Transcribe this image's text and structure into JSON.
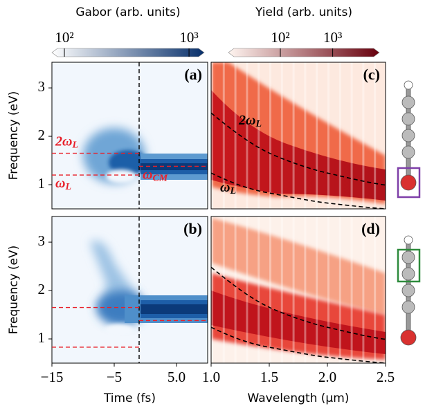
{
  "chart_data": [
    {
      "type": "heatmap",
      "panel": "(a)",
      "ylabel": "Frequency (eV)",
      "xlim": [
        -15,
        10
      ],
      "ylim": [
        0.5,
        3.53
      ],
      "yticks": [
        1,
        2,
        3
      ],
      "vline": -1,
      "colorbar": {
        "label": "Gabor (arb. units)",
        "lim": [
          88,
          1195
        ],
        "log": true,
        "colors": [
          "#ffffff",
          "#08306b"
        ],
        "ticks": [
          {
            "value": 100,
            "label": "10²"
          },
          {
            "value": 1000,
            "label": "10³"
          }
        ]
      },
      "hlines": [
        {
          "y": 1.65,
          "side": "left",
          "label": "2ω",
          "sub": "L"
        },
        {
          "y": 1.2,
          "side": "left",
          "label": "ω",
          "sub": "L"
        },
        {
          "y": 1.38,
          "side": "right",
          "label": "ω",
          "sub": "CM"
        }
      ],
      "line_color": "#e8202a"
    },
    {
      "type": "heatmap",
      "panel": "(c)",
      "xlim": [
        1.0,
        2.5
      ],
      "ylim": [
        0.5,
        3.53
      ],
      "colorbar": {
        "label": "Yield (arb. units)",
        "lim": [
          13,
          6100
        ],
        "log": true,
        "colors": [
          "#fff5f0",
          "#67000d"
        ],
        "ticks": [
          {
            "value": 100,
            "label": "10²"
          },
          {
            "value": 1000,
            "label": "10³"
          }
        ]
      },
      "curve_labels": [
        {
          "label": "2ω",
          "sub": "L"
        },
        {
          "label": "ω",
          "sub": "L"
        }
      ]
    },
    {
      "type": "heatmap",
      "panel": "(b)",
      "ylabel": "Frequency (eV)",
      "xlabel": "Time (fs)",
      "xlim": [
        -15,
        10
      ],
      "xticks": [
        {
          "value": -15,
          "label": "−15"
        },
        {
          "value": -5,
          "label": "−5"
        },
        5
      ],
      "ylim": [
        0.5,
        3.53
      ],
      "yticks": [
        1,
        2,
        3
      ],
      "vline": -1,
      "hlines": [
        {
          "y": 1.65,
          "side": "left"
        },
        {
          "y": 0.83,
          "side": "left"
        },
        {
          "y": 1.38,
          "side": "right"
        }
      ],
      "line_color": "#e8202a"
    },
    {
      "type": "heatmap",
      "panel": "(d)",
      "xlabel": "Wavelength (μm)",
      "xlim": [
        1.0,
        2.5
      ],
      "xticks": [
        1.0,
        1.5,
        2.0,
        2.5
      ],
      "ylim": [
        0.5,
        3.53
      ]
    }
  ]
}
